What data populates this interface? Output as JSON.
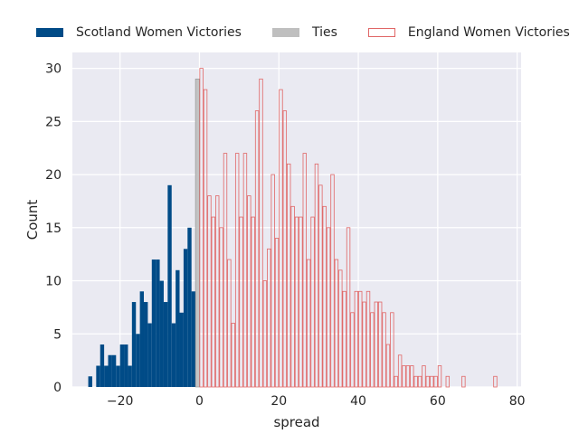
{
  "chart_data": {
    "type": "bar",
    "subtype": "histogram",
    "xlabel": "spread",
    "ylabel": "Count",
    "xlim": [
      -32,
      81
    ],
    "ylim": [
      0,
      31.5
    ],
    "xticks": [
      -20,
      0,
      20,
      40,
      60,
      80
    ],
    "yticks": [
      0,
      5,
      10,
      15,
      20,
      25,
      30
    ],
    "grid": true,
    "legend": "top, outside plot, single row",
    "colors": {
      "plot_background": "#EAEAF2",
      "grid": "#FFFFFF",
      "scotland": "#004B87",
      "ties": "#BFBFBF",
      "england_edge": "#E06666"
    },
    "series": [
      {
        "name": "Scotland Women Victories",
        "style": "filled",
        "color": "#004B87",
        "bin_width": 1,
        "bins": [
          {
            "x": -28,
            "count": 1
          },
          {
            "x": -27,
            "count": 0
          },
          {
            "x": -26,
            "count": 2
          },
          {
            "x": -25,
            "count": 4
          },
          {
            "x": -24,
            "count": 2
          },
          {
            "x": -23,
            "count": 3
          },
          {
            "x": -22,
            "count": 3
          },
          {
            "x": -21,
            "count": 2
          },
          {
            "x": -20,
            "count": 4
          },
          {
            "x": -19,
            "count": 4
          },
          {
            "x": -18,
            "count": 2
          },
          {
            "x": -17,
            "count": 8
          },
          {
            "x": -16,
            "count": 5
          },
          {
            "x": -15,
            "count": 9
          },
          {
            "x": -14,
            "count": 8
          },
          {
            "x": -13,
            "count": 6
          },
          {
            "x": -12,
            "count": 12
          },
          {
            "x": -11,
            "count": 12
          },
          {
            "x": -10,
            "count": 10
          },
          {
            "x": -9,
            "count": 8
          },
          {
            "x": -8,
            "count": 19
          },
          {
            "x": -7,
            "count": 6
          },
          {
            "x": -6,
            "count": 11
          },
          {
            "x": -5,
            "count": 7
          },
          {
            "x": -4,
            "count": 13
          },
          {
            "x": -3,
            "count": 15
          },
          {
            "x": -2,
            "count": 9
          }
        ]
      },
      {
        "name": "Ties",
        "style": "filled",
        "color": "#BFBFBF",
        "bin_width": 1,
        "bins": [
          {
            "x": -1,
            "count": 29
          }
        ]
      },
      {
        "name": "England Women Victories",
        "style": "outline",
        "color": "#E06666",
        "bin_width": 1,
        "bins": [
          {
            "x": 0,
            "count": 30
          },
          {
            "x": 1,
            "count": 28
          },
          {
            "x": 2,
            "count": 18
          },
          {
            "x": 3,
            "count": 16
          },
          {
            "x": 4,
            "count": 18
          },
          {
            "x": 5,
            "count": 15
          },
          {
            "x": 6,
            "count": 22
          },
          {
            "x": 7,
            "count": 12
          },
          {
            "x": 8,
            "count": 6
          },
          {
            "x": 9,
            "count": 22
          },
          {
            "x": 10,
            "count": 16
          },
          {
            "x": 11,
            "count": 22
          },
          {
            "x": 12,
            "count": 18
          },
          {
            "x": 13,
            "count": 16
          },
          {
            "x": 14,
            "count": 26
          },
          {
            "x": 15,
            "count": 29
          },
          {
            "x": 16,
            "count": 10
          },
          {
            "x": 17,
            "count": 13
          },
          {
            "x": 18,
            "count": 20
          },
          {
            "x": 19,
            "count": 14
          },
          {
            "x": 20,
            "count": 28
          },
          {
            "x": 21,
            "count": 26
          },
          {
            "x": 22,
            "count": 21
          },
          {
            "x": 23,
            "count": 17
          },
          {
            "x": 24,
            "count": 16
          },
          {
            "x": 25,
            "count": 16
          },
          {
            "x": 26,
            "count": 22
          },
          {
            "x": 27,
            "count": 12
          },
          {
            "x": 28,
            "count": 16
          },
          {
            "x": 29,
            "count": 21
          },
          {
            "x": 30,
            "count": 19
          },
          {
            "x": 31,
            "count": 17
          },
          {
            "x": 32,
            "count": 15
          },
          {
            "x": 33,
            "count": 20
          },
          {
            "x": 34,
            "count": 12
          },
          {
            "x": 35,
            "count": 11
          },
          {
            "x": 36,
            "count": 9
          },
          {
            "x": 37,
            "count": 15
          },
          {
            "x": 38,
            "count": 7
          },
          {
            "x": 39,
            "count": 9
          },
          {
            "x": 40,
            "count": 9
          },
          {
            "x": 41,
            "count": 8
          },
          {
            "x": 42,
            "count": 9
          },
          {
            "x": 43,
            "count": 7
          },
          {
            "x": 44,
            "count": 8
          },
          {
            "x": 45,
            "count": 8
          },
          {
            "x": 46,
            "count": 7
          },
          {
            "x": 47,
            "count": 4
          },
          {
            "x": 48,
            "count": 7
          },
          {
            "x": 49,
            "count": 1
          },
          {
            "x": 50,
            "count": 3
          },
          {
            "x": 51,
            "count": 2
          },
          {
            "x": 52,
            "count": 2
          },
          {
            "x": 53,
            "count": 2
          },
          {
            "x": 54,
            "count": 1
          },
          {
            "x": 55,
            "count": 1
          },
          {
            "x": 56,
            "count": 2
          },
          {
            "x": 57,
            "count": 1
          },
          {
            "x": 58,
            "count": 1
          },
          {
            "x": 59,
            "count": 1
          },
          {
            "x": 60,
            "count": 2
          },
          {
            "x": 62,
            "count": 1
          },
          {
            "x": 66,
            "count": 1
          },
          {
            "x": 74,
            "count": 1
          }
        ]
      }
    ]
  }
}
